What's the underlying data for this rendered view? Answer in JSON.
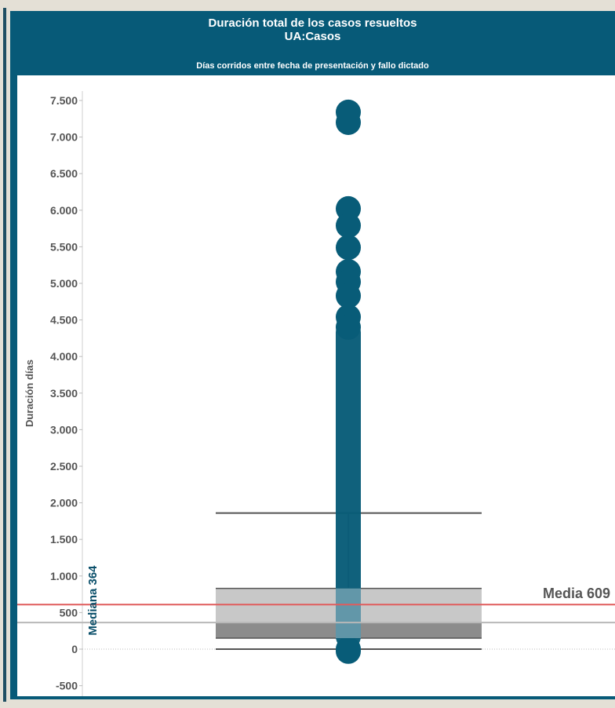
{
  "header": {
    "title": "Duración total de los casos resueltos",
    "subtitle": "UA:Casos",
    "note": "Días corridos entre fecha de presentación y fallo dictado"
  },
  "colors": {
    "header_bg": "#075a78",
    "points": "#085c78",
    "mean_line": "#e05c5c",
    "median_line": "#b8b8b8",
    "box_upper": "#c8c8c8",
    "box_lower": "#8c8c8c",
    "whisker": "#555555"
  },
  "chart_data": {
    "type": "scatter",
    "ylabel": "Duración días",
    "ylim": [
      -500,
      7700
    ],
    "yticks": [
      -500,
      0,
      500,
      1000,
      1500,
      2000,
      2500,
      3000,
      3500,
      4000,
      4500,
      5000,
      5500,
      6000,
      6500,
      7000,
      7500
    ],
    "ytick_labels": [
      "-500",
      "0",
      "500",
      "1.000",
      "1.500",
      "2.000",
      "2.500",
      "3.000",
      "3.500",
      "4.000",
      "4.500",
      "5.000",
      "5.500",
      "6.000",
      "6.500",
      "7.000",
      "7.500"
    ],
    "points": [
      7340,
      7200,
      6020,
      5790,
      5490,
      5160,
      5020,
      4830,
      4540,
      4400,
      0,
      -30
    ],
    "dense_range": [
      0,
      4500
    ],
    "boxplot": {
      "lower_whisker": 0,
      "q1": 150,
      "median": 364,
      "q3": 830,
      "upper_whisker": 1860
    },
    "reference_lines": [
      {
        "label": "Media 609",
        "value": 609
      },
      {
        "label": "Mediana 364",
        "value": 364
      }
    ]
  }
}
